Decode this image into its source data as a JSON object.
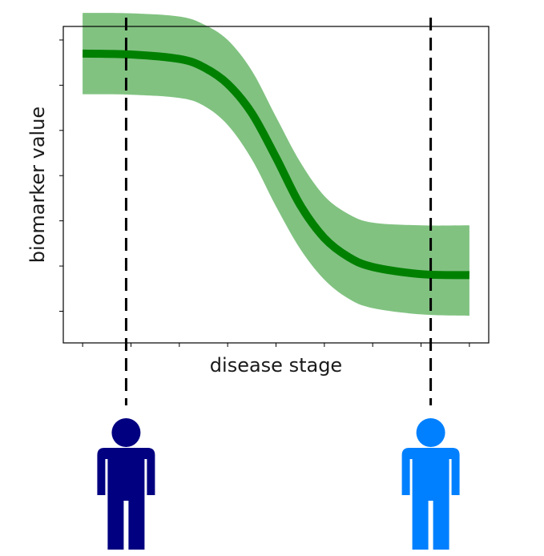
{
  "chart_data": {
    "type": "area",
    "title": "",
    "xlabel": "disease stage",
    "ylabel": "biomarker value",
    "xlim": [
      -0.2,
      4.2
    ],
    "ylim": [
      -0.7,
      6.3
    ],
    "x_ticks": [
      0,
      0.5,
      1,
      1.5,
      2,
      2.5,
      3,
      3.5,
      4
    ],
    "y_ticks": [
      0,
      1,
      2,
      3,
      4,
      5,
      6
    ],
    "tick_labels_visible": false,
    "grid": false,
    "legend": "none",
    "curve": {
      "shape": "decreasing sigmoid",
      "x": [
        0,
        0.5,
        1.0,
        1.25,
        1.5,
        1.75,
        2.0,
        2.25,
        2.5,
        2.75,
        3.0,
        3.5,
        4.0
      ],
      "y": [
        5.7,
        5.68,
        5.58,
        5.4,
        5.03,
        4.38,
        3.4,
        2.35,
        1.62,
        1.2,
        0.98,
        0.82,
        0.8
      ],
      "color": "#008000"
    },
    "band": {
      "upper": [
        6.6,
        6.59,
        6.52,
        6.35,
        6.0,
        5.32,
        4.3,
        3.3,
        2.55,
        2.15,
        1.96,
        1.9,
        1.9
      ],
      "lower": [
        4.8,
        4.79,
        4.72,
        4.55,
        4.12,
        3.36,
        2.32,
        1.38,
        0.7,
        0.28,
        0.07,
        -0.07,
        -0.1
      ],
      "color": "#81c281"
    },
    "markers": [
      {
        "x": 0.45,
        "color": "#000080",
        "icon": "person-icon"
      },
      {
        "x": 3.6,
        "color": "#0080ff",
        "icon": "person-icon"
      }
    ]
  }
}
